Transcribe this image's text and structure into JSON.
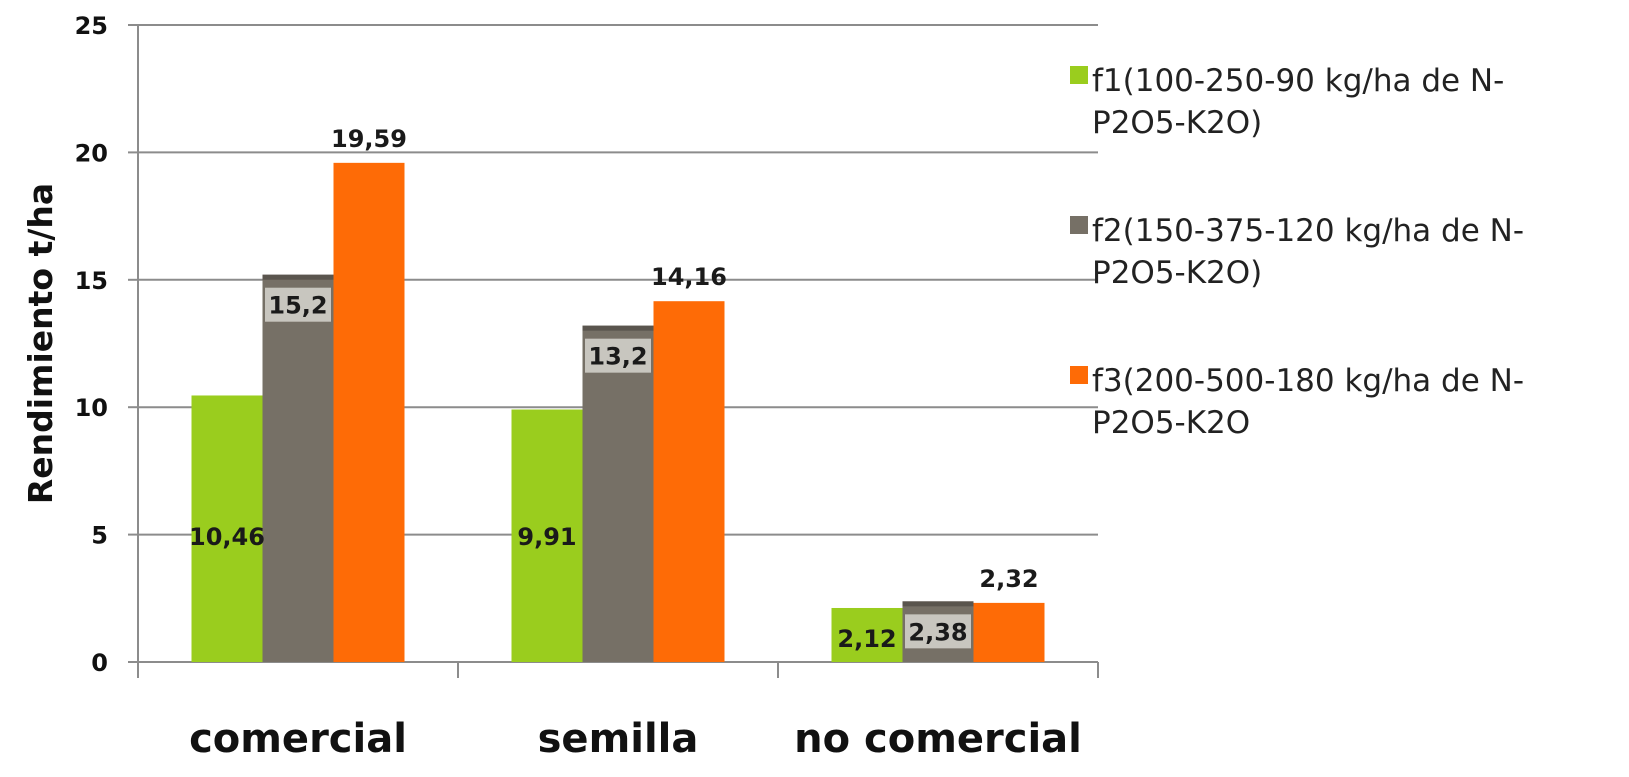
{
  "chart_data": {
    "type": "bar",
    "categories": [
      "comercial",
      "semilla",
      "no comercial"
    ],
    "series": [
      {
        "name": "f1(100-250-90 kg/ha de N-P2O5-K2O)",
        "legend_lines": [
          "f1(100-250-90 kg/ha de N-",
          "P2O5-K2O)"
        ],
        "color": "#9acd1e",
        "values": [
          10.46,
          9.91,
          2.12
        ],
        "labels": [
          "10,46",
          "9,91",
          "2,12"
        ],
        "label_position": "inside"
      },
      {
        "name": "f2(150-375-120 kg/ha de N-P2O5-K2O)",
        "legend_lines": [
          "f2(150-375-120 kg/ha de N-",
          "P2O5-K2O)"
        ],
        "color": "#767066",
        "values": [
          15.2,
          13.2,
          2.38
        ],
        "labels": [
          "15,2",
          "13,2",
          "2,38"
        ],
        "label_position": "inside"
      },
      {
        "name": "f3(200-500-180 kg/ha de N-P2O5-K2O",
        "legend_lines": [
          "f3(200-500-180 kg/ha de N-",
          "P2O5-K2O"
        ],
        "color": "#fe6b06",
        "values": [
          19.59,
          14.16,
          2.32
        ],
        "labels": [
          "19,59",
          "14,16",
          "2,32"
        ],
        "label_position": "above"
      }
    ],
    "title": "",
    "xlabel": "",
    "ylabel": "Rendimiento t/ha",
    "ylim": [
      0,
      25
    ],
    "yticks": [
      0,
      5,
      10,
      15,
      20,
      25
    ],
    "ytick_labels": [
      "0",
      "5",
      "10",
      "15",
      "20",
      "25"
    ],
    "grid": "horizontal",
    "legend_position": "right"
  }
}
